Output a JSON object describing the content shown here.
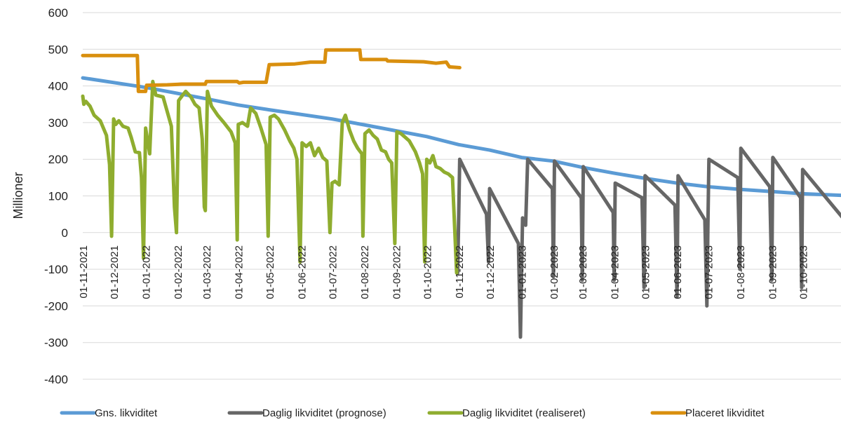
{
  "chart_data": {
    "type": "line",
    "ylabel": "Millioner",
    "ylim": [
      -400,
      600
    ],
    "ytick_labels": [
      "600",
      "500",
      "400",
      "300",
      "200",
      "100",
      "0",
      "-100",
      "-200",
      "-300",
      "-400"
    ],
    "xlim": [
      "2021-11-01",
      "2023-11-14"
    ],
    "x_tick_labels": [
      "01-11-2021",
      "01-12-2021",
      "01-01-2022",
      "01-02-2022",
      "01-03-2022",
      "01-04-2022",
      "01-05-2022",
      "01-06-2022",
      "01-07-2022",
      "01-08-2022",
      "01-09-2022",
      "01-10-2022",
      "01-11-2022",
      "01-12-2022",
      "01-01-2023",
      "01-02-2023",
      "01-03-2023",
      "01-04-2023",
      "01-05-2023",
      "01-06-2023",
      "01-07-2023",
      "01-08-2023",
      "01-09-2023",
      "01-10-2023"
    ],
    "grid": "horizontal",
    "legend_position": "bottom",
    "series": [
      {
        "name": "Gns. likviditet",
        "color": "#5B9BD5",
        "points": [
          [
            "2021-11-01",
            422
          ],
          [
            "2022-01-01",
            396
          ],
          [
            "2022-03-01",
            365
          ],
          [
            "2022-04-01",
            348
          ],
          [
            "2022-05-01",
            335
          ],
          [
            "2022-07-01",
            310
          ],
          [
            "2022-08-01",
            294
          ],
          [
            "2022-10-01",
            262
          ],
          [
            "2022-11-01",
            240
          ],
          [
            "2022-12-01",
            225
          ],
          [
            "2023-01-01",
            205
          ],
          [
            "2023-02-01",
            195
          ],
          [
            "2023-03-01",
            178
          ],
          [
            "2023-04-01",
            162
          ],
          [
            "2023-05-01",
            148
          ],
          [
            "2023-06-01",
            135
          ],
          [
            "2023-07-01",
            125
          ],
          [
            "2023-08-01",
            118
          ],
          [
            "2023-09-01",
            112
          ],
          [
            "2023-10-01",
            106
          ],
          [
            "2023-11-14",
            101
          ]
        ]
      },
      {
        "name": "Daglig likviditet (prognose)",
        "color": "#666666",
        "points": [
          [
            "2022-10-31",
            -110
          ],
          [
            "2022-11-02",
            200
          ],
          [
            "2022-11-28",
            50
          ],
          [
            "2022-11-30",
            -80
          ],
          [
            "2022-12-01",
            120
          ],
          [
            "2022-12-29",
            -30
          ],
          [
            "2022-12-31",
            -285
          ],
          [
            "2023-01-02",
            40
          ],
          [
            "2023-01-05",
            20
          ],
          [
            "2023-01-07",
            200
          ],
          [
            "2023-01-31",
            120
          ],
          [
            "2023-02-01",
            -120
          ],
          [
            "2023-02-02",
            195
          ],
          [
            "2023-02-28",
            95
          ],
          [
            "2023-03-01",
            -130
          ],
          [
            "2023-03-02",
            180
          ],
          [
            "2023-03-31",
            55
          ],
          [
            "2023-04-01",
            -130
          ],
          [
            "2023-04-02",
            135
          ],
          [
            "2023-04-28",
            95
          ],
          [
            "2023-04-30",
            -150
          ],
          [
            "2023-05-01",
            155
          ],
          [
            "2023-05-30",
            75
          ],
          [
            "2023-06-01",
            -175
          ],
          [
            "2023-06-02",
            155
          ],
          [
            "2023-06-28",
            35
          ],
          [
            "2023-06-30",
            -200
          ],
          [
            "2023-07-01",
            25
          ],
          [
            "2023-07-02",
            200
          ],
          [
            "2023-07-30",
            150
          ],
          [
            "2023-08-01",
            -100
          ],
          [
            "2023-08-02",
            230
          ],
          [
            "2023-08-30",
            125
          ],
          [
            "2023-09-01",
            -130
          ],
          [
            "2023-09-02",
            205
          ],
          [
            "2023-09-29",
            95
          ],
          [
            "2023-09-30",
            -150
          ],
          [
            "2023-10-01",
            172
          ],
          [
            "2023-11-12",
            30
          ],
          [
            "2023-11-14",
            -220
          ]
        ]
      },
      {
        "name": "Daglig likviditet (realiseret)",
        "color": "#8FAD2F",
        "points": [
          [
            "2021-11-01",
            372
          ],
          [
            "2021-11-02",
            350
          ],
          [
            "2021-11-04",
            358
          ],
          [
            "2021-11-08",
            345
          ],
          [
            "2021-11-12",
            320
          ],
          [
            "2021-11-18",
            305
          ],
          [
            "2021-11-24",
            265
          ],
          [
            "2021-11-27",
            185
          ],
          [
            "2021-11-29",
            -10
          ],
          [
            "2021-12-01",
            310
          ],
          [
            "2021-12-03",
            295
          ],
          [
            "2021-12-06",
            305
          ],
          [
            "2021-12-10",
            290
          ],
          [
            "2021-12-15",
            285
          ],
          [
            "2021-12-18",
            260
          ],
          [
            "2021-12-22",
            220
          ],
          [
            "2021-12-26",
            218
          ],
          [
            "2021-12-28",
            150
          ],
          [
            "2021-12-30",
            -70
          ],
          [
            "2022-01-01",
            285
          ],
          [
            "2022-01-03",
            250
          ],
          [
            "2022-01-05",
            215
          ],
          [
            "2022-01-08",
            412
          ],
          [
            "2022-01-11",
            375
          ],
          [
            "2022-01-18",
            370
          ],
          [
            "2022-01-22",
            330
          ],
          [
            "2022-01-26",
            290
          ],
          [
            "2022-01-29",
            70
          ],
          [
            "2022-01-31",
            0
          ],
          [
            "2022-02-02",
            360
          ],
          [
            "2022-02-06",
            375
          ],
          [
            "2022-02-09",
            385
          ],
          [
            "2022-02-14",
            370
          ],
          [
            "2022-02-18",
            350
          ],
          [
            "2022-02-22",
            340
          ],
          [
            "2022-02-25",
            255
          ],
          [
            "2022-02-27",
            70
          ],
          [
            "2022-02-28",
            60
          ],
          [
            "2022-03-02",
            385
          ],
          [
            "2022-03-06",
            345
          ],
          [
            "2022-03-12",
            320
          ],
          [
            "2022-03-18",
            300
          ],
          [
            "2022-03-25",
            275
          ],
          [
            "2022-03-29",
            245
          ],
          [
            "2022-03-31",
            -20
          ],
          [
            "2022-04-01",
            295
          ],
          [
            "2022-04-05",
            300
          ],
          [
            "2022-04-10",
            290
          ],
          [
            "2022-04-13",
            340
          ],
          [
            "2022-04-18",
            325
          ],
          [
            "2022-04-23",
            285
          ],
          [
            "2022-04-28",
            240
          ],
          [
            "2022-04-30",
            -10
          ],
          [
            "2022-05-02",
            315
          ],
          [
            "2022-05-06",
            320
          ],
          [
            "2022-05-10",
            310
          ],
          [
            "2022-05-16",
            280
          ],
          [
            "2022-05-21",
            250
          ],
          [
            "2022-05-25",
            230
          ],
          [
            "2022-05-28",
            200
          ],
          [
            "2022-05-31",
            -80
          ],
          [
            "2022-06-02",
            245
          ],
          [
            "2022-06-06",
            235
          ],
          [
            "2022-06-10",
            245
          ],
          [
            "2022-06-14",
            210
          ],
          [
            "2022-06-18",
            230
          ],
          [
            "2022-06-22",
            205
          ],
          [
            "2022-06-26",
            195
          ],
          [
            "2022-06-29",
            0
          ],
          [
            "2022-07-01",
            135
          ],
          [
            "2022-07-04",
            140
          ],
          [
            "2022-07-08",
            130
          ],
          [
            "2022-07-11",
            300
          ],
          [
            "2022-07-14",
            320
          ],
          [
            "2022-07-18",
            280
          ],
          [
            "2022-07-22",
            250
          ],
          [
            "2022-07-26",
            230
          ],
          [
            "2022-07-30",
            215
          ],
          [
            "2022-07-31",
            -10
          ],
          [
            "2022-08-02",
            270
          ],
          [
            "2022-08-06",
            280
          ],
          [
            "2022-08-10",
            265
          ],
          [
            "2022-08-14",
            255
          ],
          [
            "2022-08-18",
            225
          ],
          [
            "2022-08-22",
            220
          ],
          [
            "2022-08-25",
            200
          ],
          [
            "2022-08-28",
            190
          ],
          [
            "2022-08-31",
            -30
          ],
          [
            "2022-09-02",
            275
          ],
          [
            "2022-09-06",
            270
          ],
          [
            "2022-09-10",
            260
          ],
          [
            "2022-09-14",
            250
          ],
          [
            "2022-09-20",
            220
          ],
          [
            "2022-09-24",
            190
          ],
          [
            "2022-09-27",
            160
          ],
          [
            "2022-09-29",
            -80
          ],
          [
            "2022-10-01",
            200
          ],
          [
            "2022-10-04",
            190
          ],
          [
            "2022-10-07",
            210
          ],
          [
            "2022-10-10",
            180
          ],
          [
            "2022-10-14",
            175
          ],
          [
            "2022-10-18",
            165
          ],
          [
            "2022-10-22",
            160
          ],
          [
            "2022-10-26",
            150
          ],
          [
            "2022-10-30",
            -110
          ]
        ]
      },
      {
        "name": "Placeret likviditet",
        "color": "#D98F0E",
        "points": [
          [
            "2021-11-01",
            483
          ],
          [
            "2021-12-24",
            483
          ],
          [
            "2021-12-25",
            385
          ],
          [
            "2022-01-01",
            385
          ],
          [
            "2022-01-02",
            402
          ],
          [
            "2022-01-22",
            403
          ],
          [
            "2022-02-05",
            405
          ],
          [
            "2022-02-28",
            405
          ],
          [
            "2022-03-01",
            412
          ],
          [
            "2022-03-31",
            412
          ],
          [
            "2022-04-02",
            408
          ],
          [
            "2022-04-06",
            410
          ],
          [
            "2022-04-28",
            410
          ],
          [
            "2022-05-01",
            458
          ],
          [
            "2022-05-26",
            460
          ],
          [
            "2022-06-10",
            465
          ],
          [
            "2022-06-24",
            465
          ],
          [
            "2022-06-25",
            498
          ],
          [
            "2022-07-28",
            498
          ],
          [
            "2022-07-29",
            472
          ],
          [
            "2022-08-23",
            472
          ],
          [
            "2022-08-24",
            468
          ],
          [
            "2022-09-28",
            466
          ],
          [
            "2022-10-10",
            462
          ],
          [
            "2022-10-20",
            465
          ],
          [
            "2022-10-23",
            452
          ],
          [
            "2022-11-02",
            450
          ]
        ]
      }
    ]
  }
}
